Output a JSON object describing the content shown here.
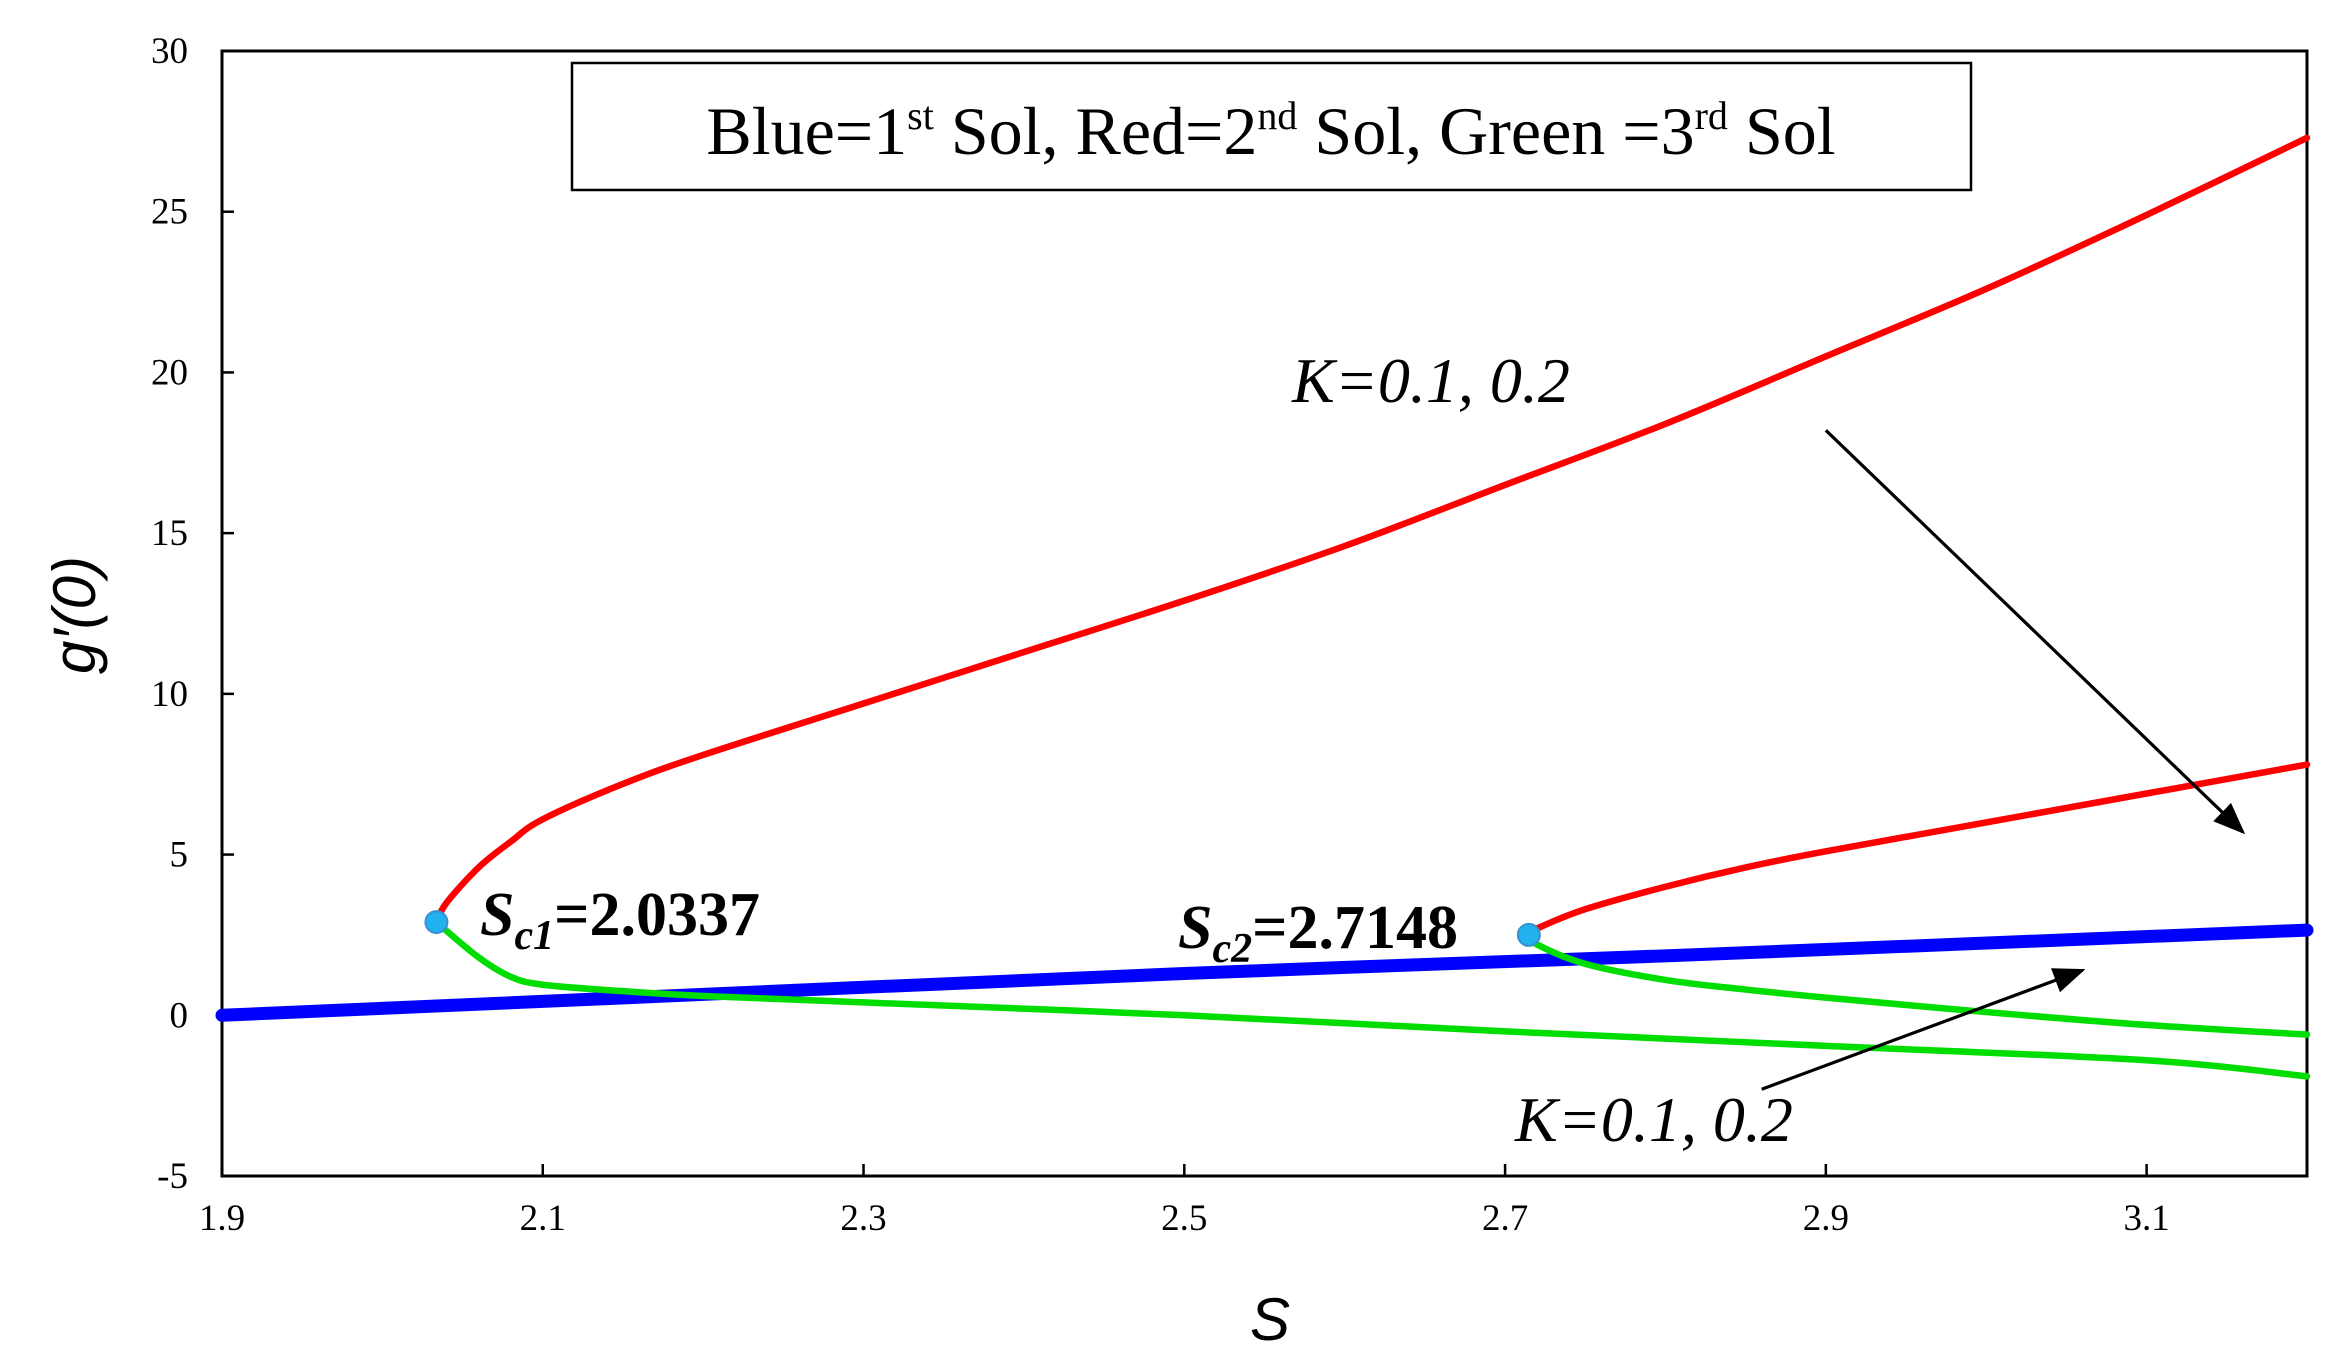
{
  "chart_data": {
    "type": "line",
    "xlabel": "S",
    "ylabel": "g′(0)",
    "xlim": [
      1.9,
      3.2
    ],
    "ylim": [
      -5,
      30
    ],
    "xticks": [
      "1.9",
      "2.1",
      "2.3",
      "2.5",
      "2.7",
      "2.9",
      "3.1"
    ],
    "yticks": [
      "-5",
      "0",
      "5",
      "10",
      "15",
      "20",
      "25",
      "30"
    ],
    "grid": false,
    "legend": {
      "position": "top-center",
      "parts": [
        {
          "text": "Blue=1",
          "sup": "st"
        },
        {
          "text": " Sol, Red=2",
          "sup": "nd"
        },
        {
          "text": " Sol, Green =3",
          "sup": "rd"
        },
        {
          "text": " Sol",
          "sup": ""
        }
      ]
    },
    "series": [
      {
        "color": "#ff0000",
        "x": [
          2.0337,
          2.04,
          2.06,
          2.08,
          2.1,
          2.15,
          2.2,
          2.3,
          2.4,
          2.5,
          2.6,
          2.7,
          2.8,
          2.9,
          3.0,
          3.1,
          3.2
        ],
        "y": [
          2.9,
          3.5,
          4.6,
          5.4,
          6.1,
          7.2,
          8.1,
          9.7,
          11.3,
          12.9,
          14.6,
          16.5,
          18.4,
          20.5,
          22.6,
          24.9,
          27.3
        ]
      },
      {
        "color": "#0000ff",
        "x": [
          1.9,
          2.2,
          2.5,
          2.8,
          3.2
        ],
        "y": [
          0.0,
          0.65,
          1.3,
          1.85,
          2.65
        ]
      },
      {
        "color": "#00dd00",
        "x": [
          2.0337,
          2.06,
          2.08,
          2.1,
          2.15,
          2.2,
          2.3,
          2.5,
          2.7,
          2.9,
          3.1,
          3.2
        ],
        "y": [
          2.9,
          1.8,
          1.2,
          0.95,
          0.75,
          0.6,
          0.4,
          0.0,
          -0.5,
          -0.95,
          -1.4,
          -1.9
        ]
      },
      {
        "color": "#ff0000",
        "x": [
          2.7148,
          2.72,
          2.75,
          2.8,
          2.85,
          2.9,
          3.0,
          3.1,
          3.2
        ],
        "y": [
          2.5,
          2.7,
          3.3,
          4.0,
          4.6,
          5.1,
          6.0,
          6.9,
          7.8
        ]
      },
      {
        "color": "#00dd00",
        "x": [
          2.7148,
          2.72,
          2.75,
          2.8,
          2.85,
          2.9,
          3.0,
          3.1,
          3.2
        ],
        "y": [
          2.5,
          2.2,
          1.6,
          1.1,
          0.8,
          0.55,
          0.1,
          -0.3,
          -0.6
        ]
      }
    ],
    "critical_points": [
      {
        "x": 2.0337,
        "y": 2.9,
        "label_main": "S",
        "label_sub": "c1",
        "label_value": "=2.0337"
      },
      {
        "x": 2.7148,
        "y": 2.5,
        "label_main": "S",
        "label_sub": "c2",
        "label_value": "=2.7148"
      }
    ],
    "annotations": [
      {
        "text": "K=0.1, 0.2",
        "text_x": 2.2905,
        "text_y": 19.5,
        "arrow_from": [
          2.9,
          18.2
        ],
        "arrow_to": [
          3.16,
          5.7
        ]
      },
      {
        "text": "K=0.1, 0.2",
        "text_x": 2.7055,
        "text_y": -3.6,
        "arrow_from": [
          2.86,
          -2.3
        ],
        "arrow_to": [
          3.06,
          1.4
        ]
      }
    ]
  }
}
